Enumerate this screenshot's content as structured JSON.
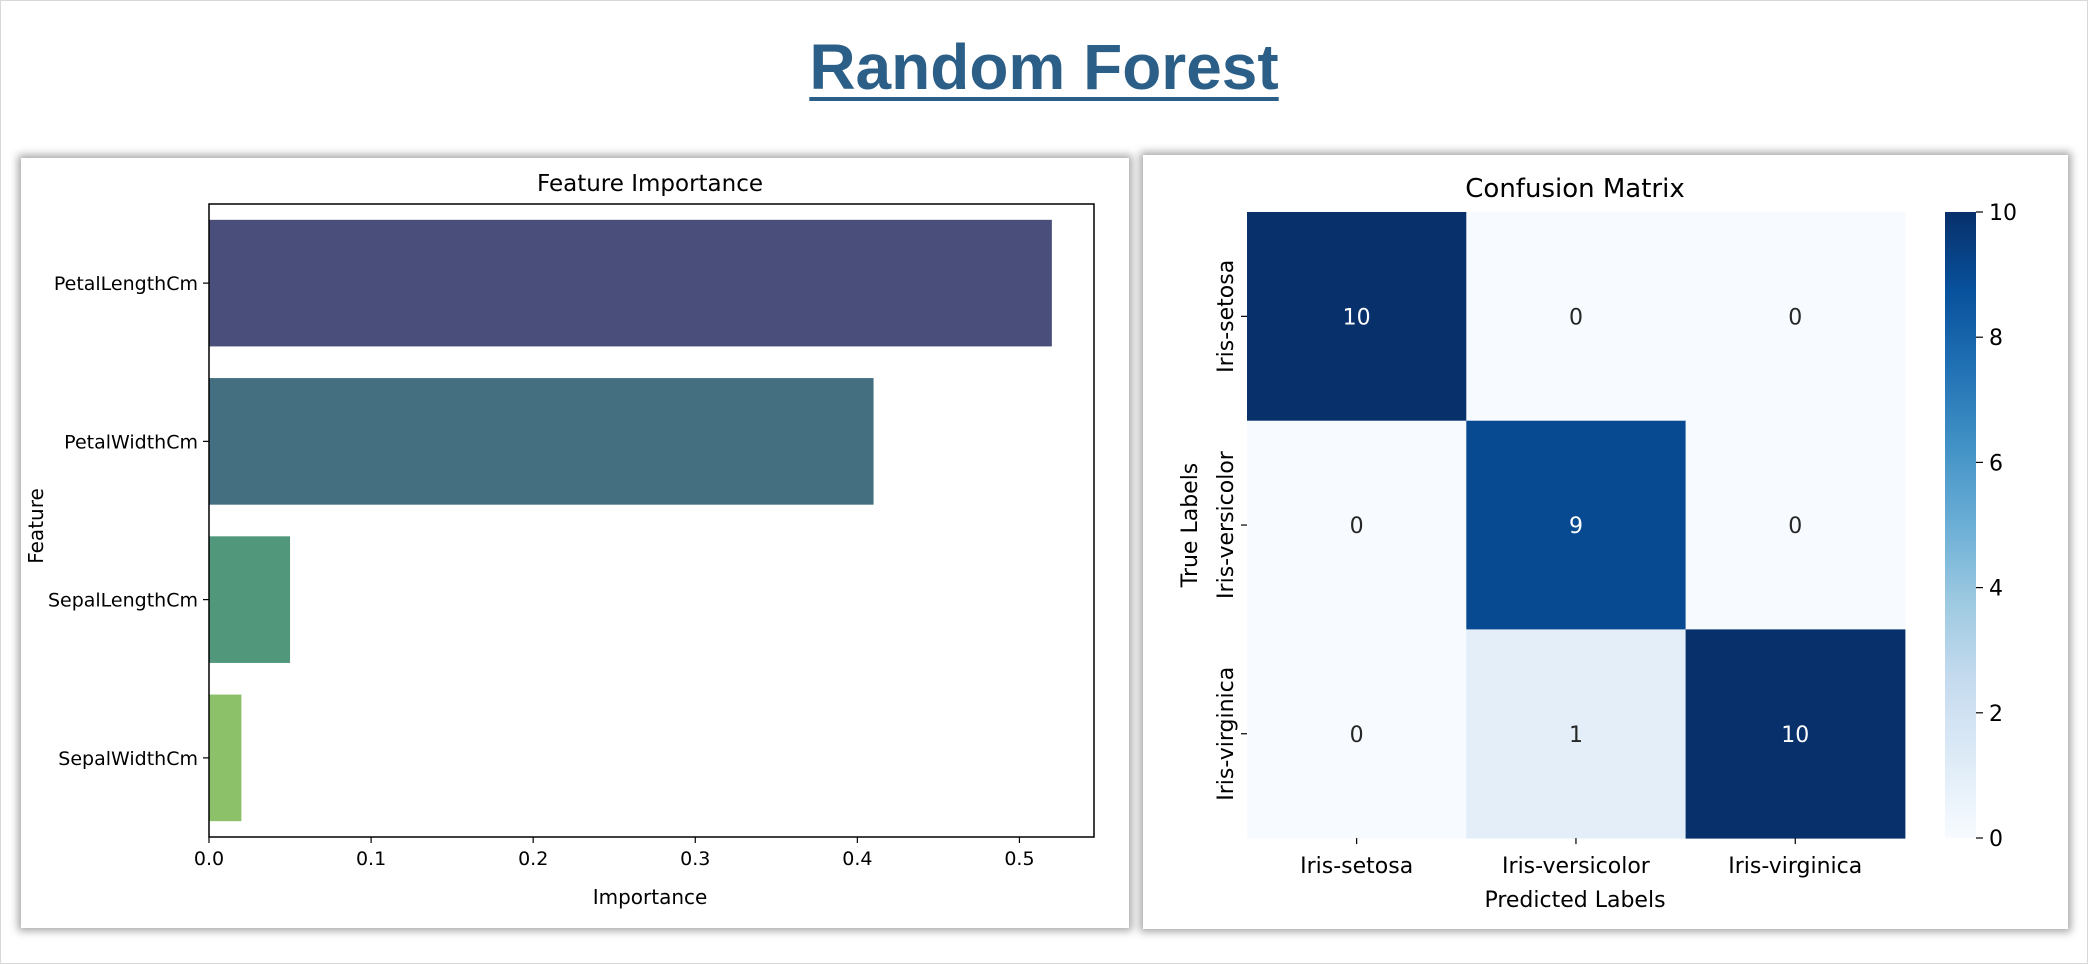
{
  "page": {
    "title": "Random Forest"
  },
  "chart_data": [
    {
      "type": "bar",
      "orientation": "horizontal",
      "title": "Feature Importance",
      "xlabel": "Importance",
      "ylabel": "Feature",
      "categories": [
        "PetalLengthCm",
        "PetalWidthCm",
        "SepalLengthCm",
        "SepalWidthCm"
      ],
      "values": [
        0.52,
        0.41,
        0.05,
        0.02
      ],
      "colors": [
        "#4a4e7a",
        "#436f80",
        "#50977c",
        "#8cc169"
      ],
      "xlim": [
        0,
        0.546
      ],
      "xticks": [
        "0.0",
        "0.1",
        "0.2",
        "0.3",
        "0.4",
        "0.5"
      ],
      "grid": false
    },
    {
      "type": "heatmap",
      "title": "Confusion Matrix",
      "xlabel": "Predicted Labels",
      "ylabel": "True Labels",
      "x_categories": [
        "Iris-setosa",
        "Iris-versicolor",
        "Iris-virginica"
      ],
      "y_categories": [
        "Iris-setosa",
        "Iris-versicolor",
        "Iris-virginica"
      ],
      "values": [
        [
          10,
          0,
          0
        ],
        [
          0,
          9,
          0
        ],
        [
          0,
          1,
          10
        ]
      ],
      "colormap": "Blues",
      "vmin": 0,
      "vmax": 10,
      "colorbar_ticks": [
        "0",
        "2",
        "4",
        "6",
        "8",
        "10"
      ],
      "colorbar_position": "right"
    }
  ]
}
